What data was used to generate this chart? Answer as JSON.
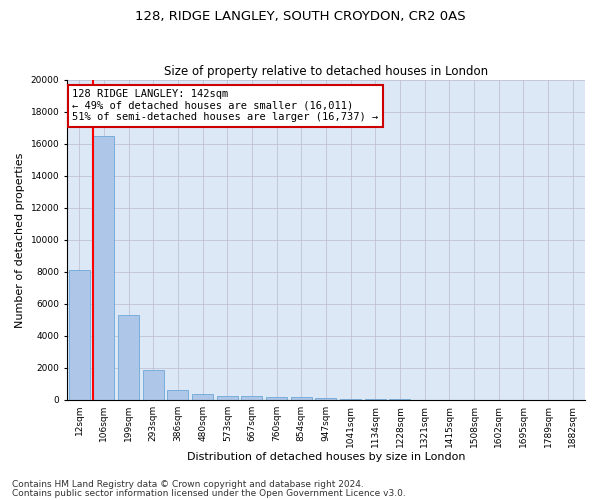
{
  "title_line1": "128, RIDGE LANGLEY, SOUTH CROYDON, CR2 0AS",
  "title_line2": "Size of property relative to detached houses in London",
  "xlabel": "Distribution of detached houses by size in London",
  "ylabel": "Number of detached properties",
  "categories": [
    "12sqm",
    "106sqm",
    "199sqm",
    "293sqm",
    "386sqm",
    "480sqm",
    "573sqm",
    "667sqm",
    "760sqm",
    "854sqm",
    "947sqm",
    "1041sqm",
    "1134sqm",
    "1228sqm",
    "1321sqm",
    "1415sqm",
    "1508sqm",
    "1602sqm",
    "1695sqm",
    "1789sqm",
    "1882sqm"
  ],
  "bar_values": [
    8100,
    16500,
    5300,
    1850,
    650,
    350,
    270,
    220,
    170,
    200,
    100,
    60,
    40,
    30,
    20,
    15,
    10,
    8,
    6,
    5,
    4
  ],
  "bar_color": "#aec6e8",
  "bar_edgecolor": "#5a9fd4",
  "ylim": [
    0,
    20000
  ],
  "yticks": [
    0,
    2000,
    4000,
    6000,
    8000,
    10000,
    12000,
    14000,
    16000,
    18000,
    20000
  ],
  "red_line_index": 1,
  "annotation_text": "128 RIDGE LANGLEY: 142sqm\n← 49% of detached houses are smaller (16,011)\n51% of semi-detached houses are larger (16,737) →",
  "annotation_box_color": "#ffffff",
  "annotation_box_edgecolor": "#cc0000",
  "footer_line1": "Contains HM Land Registry data © Crown copyright and database right 2024.",
  "footer_line2": "Contains public sector information licensed under the Open Government Licence v3.0.",
  "background_color": "#ffffff",
  "ax_facecolor": "#dce8f5",
  "grid_color": "#bbbbcc",
  "title1_fontsize": 9.5,
  "title2_fontsize": 8.5,
  "xlabel_fontsize": 8,
  "ylabel_fontsize": 8,
  "tick_fontsize": 6.5,
  "annotation_fontsize": 7.5,
  "footer_fontsize": 6.5
}
